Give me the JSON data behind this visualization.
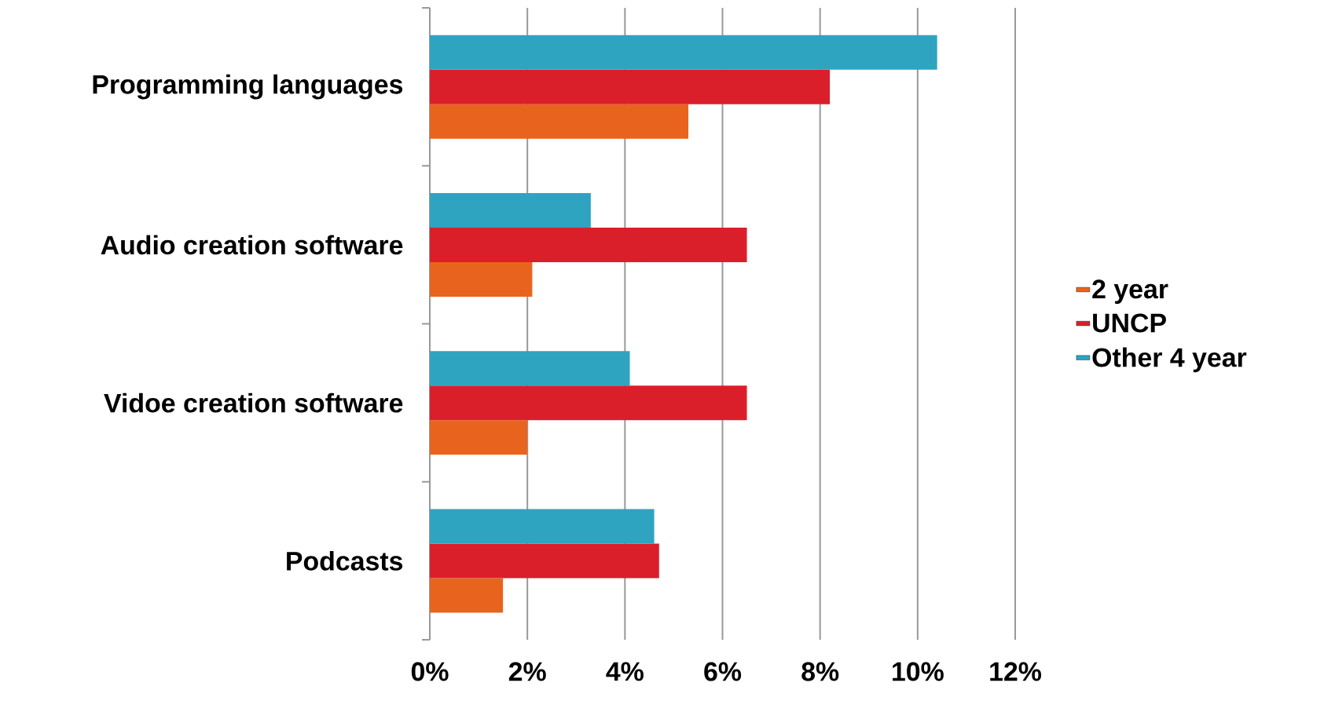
{
  "chart_data": {
    "type": "bar",
    "orientation": "horizontal",
    "categories": [
      "Programming languages",
      "Audio creation software",
      "Vidoe creation software",
      "Podcasts"
    ],
    "series": [
      {
        "name": "2 year",
        "color": "#e8641e",
        "values": [
          5.3,
          2.1,
          2.0,
          1.5
        ]
      },
      {
        "name": "UNCP",
        "color": "#da1f2a",
        "values": [
          8.2,
          6.5,
          6.5,
          4.7
        ]
      },
      {
        "name": "Other 4 year",
        "color": "#2ea4c1",
        "values": [
          10.4,
          3.3,
          4.1,
          4.6
        ]
      }
    ],
    "xlim": [
      0,
      12
    ],
    "xticks": [
      {
        "value": 0,
        "label": "0%"
      },
      {
        "value": 2,
        "label": "2%"
      },
      {
        "value": 4,
        "label": "4%"
      },
      {
        "value": 6,
        "label": "6%"
      },
      {
        "value": 8,
        "label": "8%"
      },
      {
        "value": 10,
        "label": "10%"
      },
      {
        "value": 12,
        "label": "12%"
      }
    ],
    "grid": "x",
    "legend": "right"
  }
}
